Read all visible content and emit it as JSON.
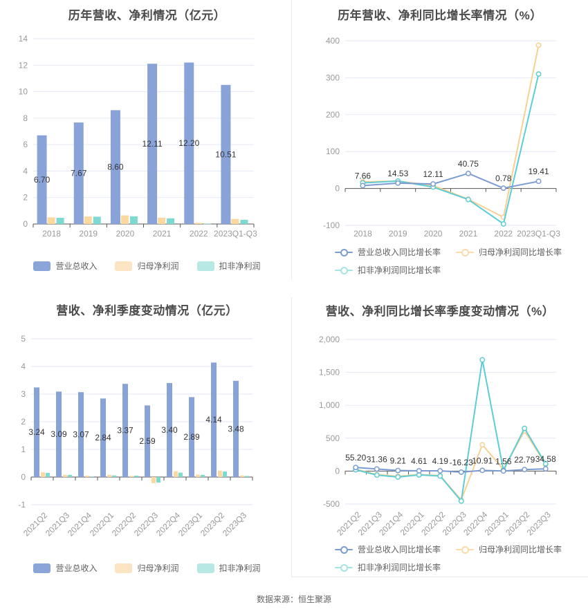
{
  "footer": {
    "source": "数据来源：恒生聚源"
  },
  "legends": {
    "bar": [
      "营业总收入",
      "归母净利润",
      "扣非净利润"
    ],
    "line": [
      "营业总收入同比增长率",
      "归母净利润同比增长率",
      "扣非净利润同比增长率"
    ]
  },
  "colors": {
    "series_bar": [
      "#89A3D8",
      "#FAD89E",
      "#7EDAD0"
    ],
    "series_line": [
      "#7B9BD2",
      "#F9D093",
      "#5CCDD4"
    ],
    "legend_bar": [
      "#8BA5D9",
      "#FBE4C2",
      "#B7E8E3"
    ],
    "legend_line": [
      "#7B9BD2",
      "#FBDCA8",
      "#A6E4E2"
    ],
    "grid_line": "#E2E9F4",
    "axis_line": "#555555",
    "tick_label": "#999999",
    "title": "#4A4A4A",
    "data_label": "#333333",
    "legend_label": "#5E5E5E",
    "footer": "#666666",
    "panel_border": "#EAEAEA"
  },
  "chart_data": [
    {
      "type": "bar",
      "title": "历年营收、净利情况（亿元）",
      "categories": [
        "2018",
        "2019",
        "2020",
        "2021",
        "2022",
        "2023Q1-Q3"
      ],
      "series": [
        {
          "name": "营业总收入",
          "values": [
            6.7,
            7.67,
            8.6,
            12.11,
            12.2,
            10.51
          ],
          "labels": [
            "6.70",
            "7.67",
            "8.60",
            "12.11",
            "12.20",
            "10.51"
          ]
        },
        {
          "name": "归母净利润",
          "values": [
            0.5,
            0.57,
            0.65,
            0.47,
            0.09,
            0.38
          ]
        },
        {
          "name": "扣非净利润",
          "values": [
            0.47,
            0.55,
            0.58,
            0.43,
            0.02,
            0.32
          ]
        }
      ],
      "ylim": [
        0,
        14
      ],
      "ytick_step": 2,
      "grid": true,
      "legend_position": "bottom"
    },
    {
      "type": "line",
      "title": "历年营收、净利同比增长率情况（%）",
      "categories": [
        "2018",
        "2019",
        "2020",
        "2021",
        "2022",
        "2023Q1-Q3"
      ],
      "series": [
        {
          "name": "营业总收入同比增长率",
          "values": [
            7.66,
            14.53,
            12.11,
            40.75,
            0.78,
            19.41
          ],
          "labels": [
            "7.66",
            "14.53",
            "12.11",
            "40.75",
            "0.78",
            "19.41"
          ]
        },
        {
          "name": "归母净利润同比增长率",
          "values": [
            18,
            20,
            8,
            -29,
            -78,
            388
          ]
        },
        {
          "name": "扣非净利润同比增长率",
          "values": [
            15,
            20,
            4,
            -30,
            -96,
            310
          ]
        }
      ],
      "ylim": [
        -100,
        400
      ],
      "ytick_step": 100,
      "grid": true,
      "legend_position": "bottom"
    },
    {
      "type": "bar",
      "title": "营收、净利季度变动情况（亿元）",
      "categories": [
        "2021Q2",
        "2021Q3",
        "2021Q4",
        "2022Q1",
        "2022Q2",
        "2022Q3",
        "2022Q4",
        "2023Q1",
        "2023Q2",
        "2023Q3"
      ],
      "series": [
        {
          "name": "营业总收入",
          "values": [
            3.24,
            3.09,
            3.07,
            2.84,
            3.37,
            2.59,
            3.4,
            2.89,
            4.14,
            3.48
          ],
          "labels": [
            "3.24",
            "3.09",
            "3.07",
            "2.84",
            "3.37",
            "2.59",
            "3.40",
            "2.89",
            "4.14",
            "3.48"
          ]
        },
        {
          "name": "归母净利润",
          "values": [
            0.17,
            0.08,
            0.05,
            0.08,
            0.04,
            -0.22,
            0.21,
            0.09,
            0.23,
            0.06
          ]
        },
        {
          "name": "扣非净利润",
          "values": [
            0.15,
            0.08,
            0.02,
            0.06,
            0.05,
            -0.2,
            0.16,
            0.08,
            0.2,
            0.04
          ]
        }
      ],
      "ylim": [
        -1,
        5
      ],
      "ytick_step": 1,
      "grid": true,
      "legend_position": "bottom"
    },
    {
      "type": "line",
      "title": "营收、净利同比增长率季度变动情况（%）",
      "categories": [
        "2021Q2",
        "2021Q3",
        "2021Q4",
        "2022Q1",
        "2022Q2",
        "2022Q3",
        "2022Q4",
        "2023Q1",
        "2023Q2",
        "2023Q3"
      ],
      "series": [
        {
          "name": "营业总收入同比增长率",
          "values": [
            55.2,
            31.36,
            9.21,
            4.61,
            4.19,
            -16.23,
            10.91,
            1.56,
            22.79,
            34.58
          ],
          "labels": [
            "55.20",
            "31.36",
            "9.21",
            "4.61",
            "4.19",
            "-16.23",
            "10.91",
            "1.56",
            "22.79",
            "34.58"
          ]
        },
        {
          "name": "归母净利润同比增长率",
          "values": [
            28,
            -52,
            -78,
            -52,
            -68,
            -438,
            400,
            25,
            610,
            100
          ]
        },
        {
          "name": "扣非净利润同比增长率",
          "values": [
            20,
            -60,
            -90,
            -58,
            -75,
            -455,
            1690,
            12,
            650,
            110
          ]
        }
      ],
      "ylim": [
        -500,
        2000
      ],
      "ytick_step": 500,
      "grid": true,
      "legend_position": "bottom"
    }
  ]
}
